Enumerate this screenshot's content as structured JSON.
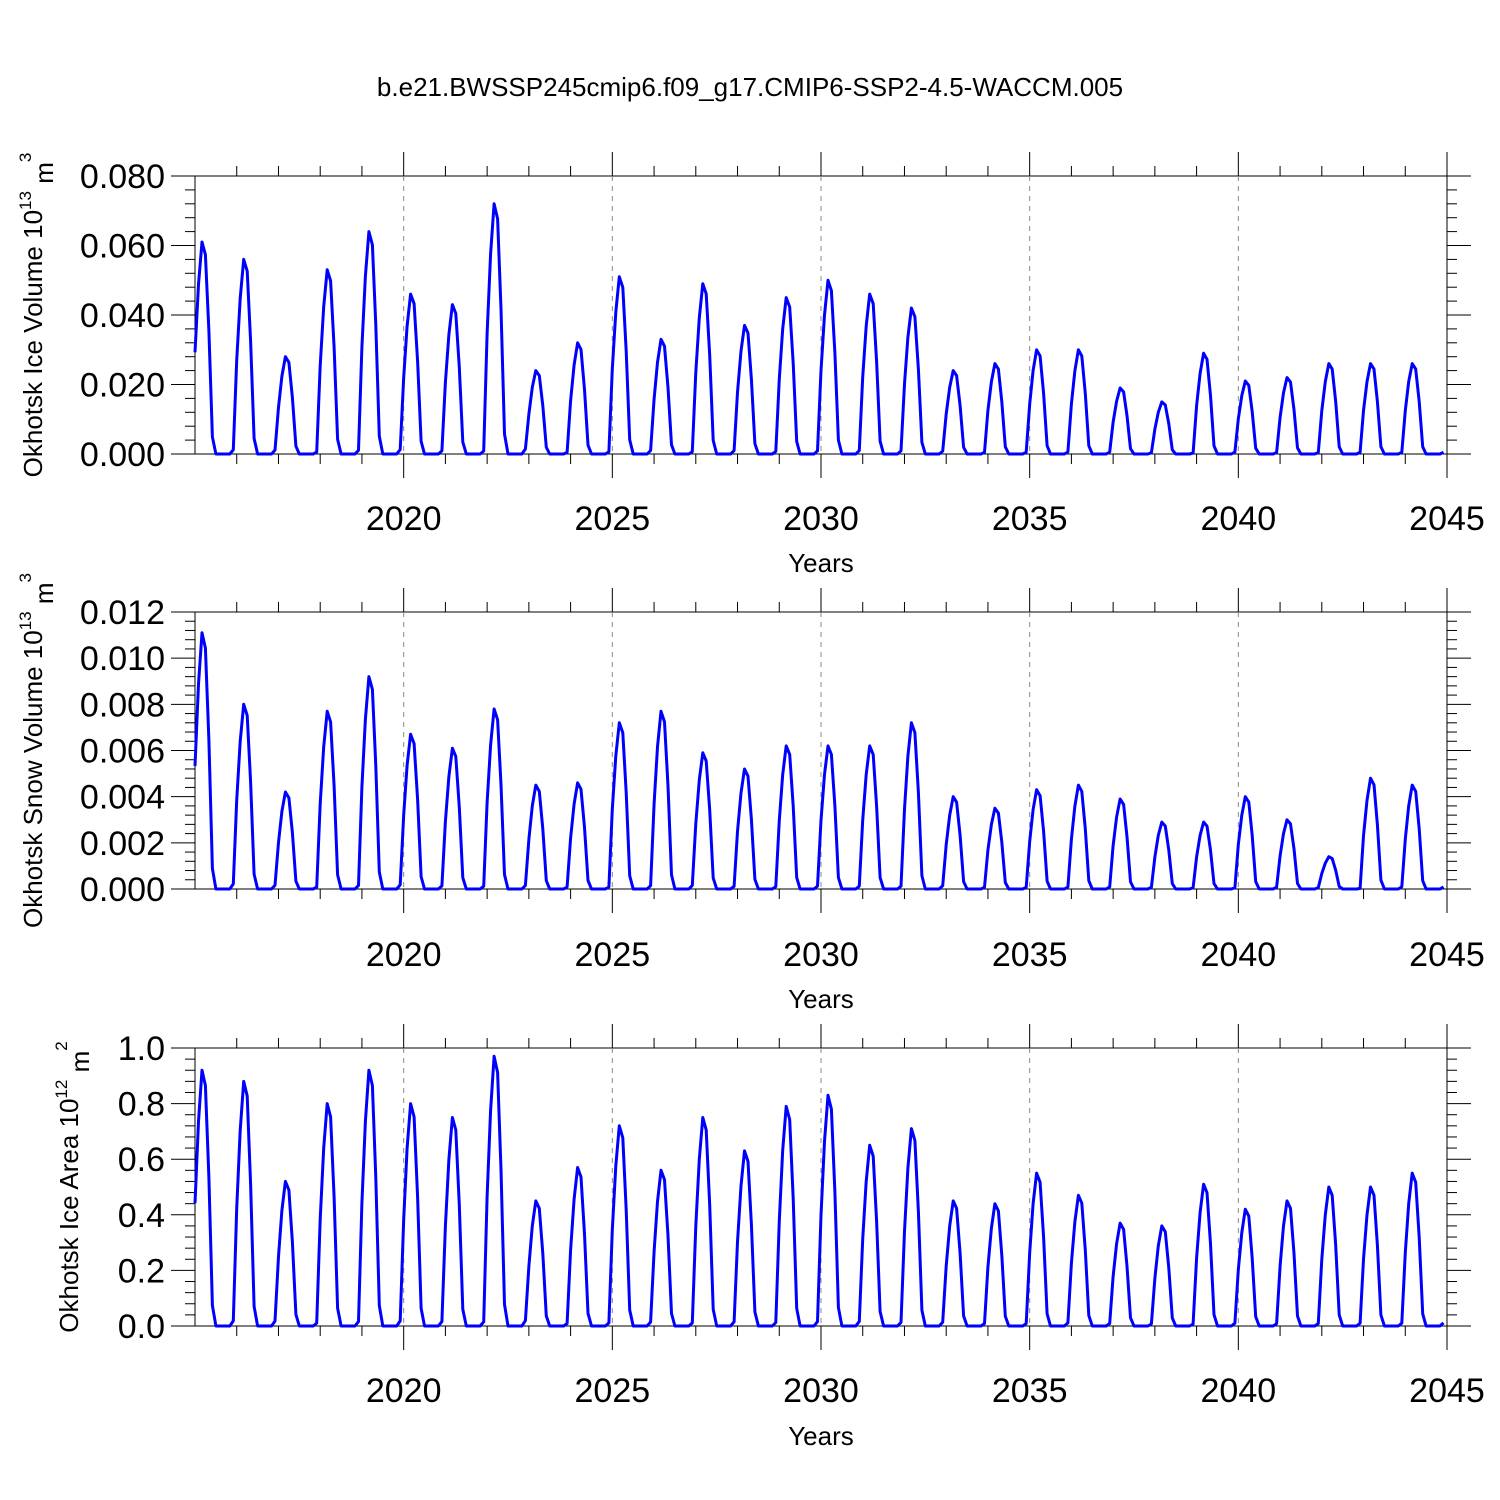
{
  "title": "b.e21.BWSSP245cmip6.f09_g17.CMIP6-SSP2-4.5-WACCM.005",
  "colors": {
    "line": "#0000ff",
    "axis": "#000000",
    "grid": "#888888"
  },
  "chart_data": [
    {
      "type": "line",
      "ylabel": "Okhotsk Ice Volume",
      "yunit_base": "10",
      "yunit_exp": "13",
      "yunit_sym": "m",
      "yunit_sym_exp": "3",
      "xlabel": "Years",
      "xlim": [
        2015,
        2045
      ],
      "ylim": [
        0,
        0.08
      ],
      "xticks": [
        "2020",
        "2025",
        "2030",
        "2035",
        "2040",
        "2045"
      ],
      "yticks": [
        "0.000",
        "0.020",
        "0.040",
        "0.060",
        "0.080"
      ],
      "peaks": [
        0.061,
        0.056,
        0.028,
        0.053,
        0.064,
        0.046,
        0.043,
        0.072,
        0.024,
        0.032,
        0.051,
        0.033,
        0.049,
        0.037,
        0.045,
        0.05,
        0.046,
        0.042,
        0.024,
        0.026,
        0.03,
        0.03,
        0.019,
        0.015,
        0.029,
        0.021,
        0.022,
        0.026,
        0.026,
        0.026
      ]
    },
    {
      "type": "line",
      "ylabel": "Okhotsk Snow Volume",
      "yunit_base": "10",
      "yunit_exp": "13",
      "yunit_sym": "m",
      "yunit_sym_exp": "3",
      "xlabel": "Years",
      "xlim": [
        2015,
        2045
      ],
      "ylim": [
        0,
        0.012
      ],
      "xticks": [
        "2020",
        "2025",
        "2030",
        "2035",
        "2040",
        "2045"
      ],
      "yticks": [
        "0.000",
        "0.002",
        "0.004",
        "0.006",
        "0.008",
        "0.010",
        "0.012"
      ],
      "peaks": [
        0.0111,
        0.008,
        0.0042,
        0.0077,
        0.0092,
        0.0067,
        0.0061,
        0.0078,
        0.0045,
        0.0046,
        0.0072,
        0.0077,
        0.0059,
        0.0052,
        0.0062,
        0.0062,
        0.0062,
        0.0072,
        0.004,
        0.0035,
        0.0043,
        0.0045,
        0.0039,
        0.0029,
        0.0029,
        0.004,
        0.003,
        0.0014,
        0.0048,
        0.0045
      ]
    },
    {
      "type": "line",
      "ylabel": "Okhotsk Ice Area",
      "yunit_base": "10",
      "yunit_exp": "12",
      "yunit_sym": "m",
      "yunit_sym_exp": "2",
      "xlabel": "Years",
      "xlim": [
        2015,
        2045
      ],
      "ylim": [
        0,
        1.0
      ],
      "xticks": [
        "2020",
        "2025",
        "2030",
        "2035",
        "2040",
        "2045"
      ],
      "yticks": [
        "0.0",
        "0.2",
        "0.4",
        "0.6",
        "0.8",
        "1.0"
      ],
      "peaks": [
        0.92,
        0.88,
        0.52,
        0.8,
        0.92,
        0.8,
        0.75,
        0.97,
        0.45,
        0.57,
        0.72,
        0.56,
        0.75,
        0.63,
        0.79,
        0.83,
        0.65,
        0.71,
        0.45,
        0.44,
        0.55,
        0.47,
        0.37,
        0.36,
        0.51,
        0.42,
        0.45,
        0.5,
        0.5,
        0.55
      ]
    }
  ]
}
